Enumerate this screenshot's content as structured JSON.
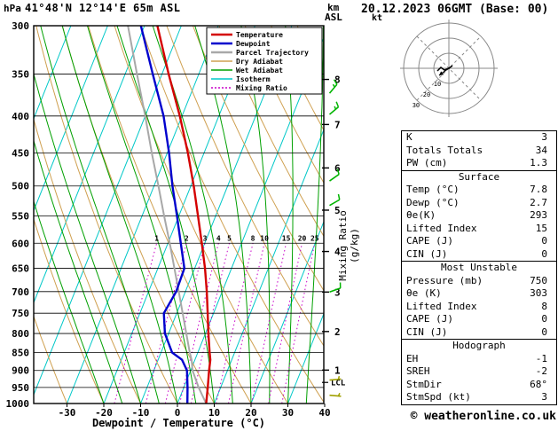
{
  "header": {
    "pressure_unit": "hPa",
    "title": "41°48'N 12°14'E 65m ASL",
    "altitude_unit_line1": "km",
    "altitude_unit_line2": "ASL",
    "date_title": "20.12.2023 06GMT (Base: 00)"
  },
  "chart_data": {
    "type": "skewt-logp-sounding",
    "xlabel": "Dewpoint / Temperature (°C)",
    "mixing_ratio_axis_label": "Mixing Ratio (g/kg)",
    "pressure_axis_range": [
      300,
      1000
    ],
    "temp_axis_range": [
      -40,
      40
    ],
    "pressure_ticks": [
      300,
      350,
      400,
      450,
      500,
      550,
      600,
      650,
      700,
      750,
      800,
      850,
      900,
      950,
      1000
    ],
    "temp_ticks": [
      -30,
      -20,
      -10,
      0,
      10,
      20,
      30,
      40
    ],
    "mixing_ratio_lines": [
      1,
      2,
      3,
      4,
      5,
      8,
      10,
      15,
      20,
      25
    ],
    "km_ticks": [
      {
        "km": 8,
        "p": 356
      },
      {
        "km": 7,
        "p": 411
      },
      {
        "km": 6,
        "p": 472
      },
      {
        "km": 5,
        "p": 540
      },
      {
        "km": 4,
        "p": 616
      },
      {
        "km": 3,
        "p": 701
      },
      {
        "km": 2,
        "p": 795
      },
      {
        "km": 1,
        "p": 899
      }
    ],
    "lcl": {
      "label": "LCL",
      "p": 935
    },
    "legend": [
      {
        "label": "Temperature",
        "key": "temperature"
      },
      {
        "label": "Dewpoint",
        "key": "dewpoint"
      },
      {
        "label": "Parcel Trajectory",
        "key": "parcel"
      },
      {
        "label": "Dry Adiabat",
        "key": "dry_adiabat"
      },
      {
        "label": "Wet Adiabat",
        "key": "wet_adiabat"
      },
      {
        "label": "Isotherm",
        "key": "isotherm"
      },
      {
        "label": "Mixing Ratio",
        "key": "mixing_ratio"
      }
    ],
    "colors": {
      "temperature": "#d40000",
      "dewpoint": "#0000cd",
      "parcel": "#a8a8a8",
      "dry_adiabat": "#cfa050",
      "wet_adiabat": "#00a000",
      "isotherm": "#00c8c8",
      "mixing_ratio": "#c800c8",
      "grid": "#000000",
      "barb_upper": "#00b400",
      "barb_lower": "#a0a000"
    },
    "sounding": {
      "pressure": [
        1000,
        950,
        900,
        870,
        850,
        800,
        750,
        700,
        650,
        600,
        550,
        500,
        450,
        400,
        350,
        300
      ],
      "temperature": [
        7.8,
        6.5,
        5.0,
        4.2,
        3.2,
        0.8,
        -1.6,
        -4.2,
        -7.2,
        -10.8,
        -14.8,
        -19.2,
        -24.4,
        -30.6,
        -38.2,
        -46.5
      ],
      "dewpoint": [
        2.7,
        1.0,
        -1.0,
        -3.5,
        -7.0,
        -11.0,
        -13.5,
        -12.5,
        -12.8,
        -16.5,
        -20.5,
        -25.0,
        -29.5,
        -35.0,
        -42.5,
        -51.0
      ],
      "parcel": [
        7.8,
        4.0,
        0.5,
        -0.9,
        -2.2,
        -5.2,
        -8.4,
        -11.8,
        -15.5,
        -19.5,
        -24.0,
        -28.8,
        -34.2,
        -40.0,
        -46.8,
        -54.5
      ]
    },
    "wind_barbs": [
      {
        "p": 372,
        "dir": 40,
        "spd": 15,
        "tier": "upper"
      },
      {
        "p": 398,
        "dir": 50,
        "spd": 15,
        "tier": "upper"
      },
      {
        "p": 492,
        "dir": 55,
        "spd": 10,
        "tier": "upper"
      },
      {
        "p": 532,
        "dir": 60,
        "spd": 10,
        "tier": "upper"
      },
      {
        "p": 701,
        "dir": 70,
        "spd": 10,
        "tier": "upper"
      },
      {
        "p": 928,
        "dir": 85,
        "spd": 5,
        "tier": "lower"
      },
      {
        "p": 974,
        "dir": 95,
        "spd": 5,
        "tier": "lower"
      }
    ]
  },
  "hodograph": {
    "unit_label": "kt",
    "rings_kt": [
      10,
      20,
      30
    ],
    "ring_labels": [
      "10",
      "20",
      "30"
    ],
    "trace": [
      [
        4,
        -3
      ],
      [
        0,
        0
      ],
      [
        -5,
        2
      ],
      [
        -9,
        -1
      ],
      [
        -13,
        3
      ]
    ],
    "storm_arrow": [
      [
        1,
        -1
      ],
      [
        -11,
        8
      ]
    ]
  },
  "table": {
    "sections": [
      {
        "header": "",
        "rows": [
          [
            "K",
            "3"
          ],
          [
            "Totals Totals",
            "34"
          ],
          [
            "PW (cm)",
            "1.3"
          ]
        ]
      },
      {
        "header": "Surface",
        "rows": [
          [
            "Temp (°C)",
            "7.8"
          ],
          [
            "Dewp (°C)",
            "2.7"
          ],
          [
            "θe(K)",
            "293"
          ],
          [
            "Lifted Index",
            "15"
          ],
          [
            "CAPE (J)",
            "0"
          ],
          [
            "CIN (J)",
            "0"
          ]
        ]
      },
      {
        "header": "Most Unstable",
        "rows": [
          [
            "Pressure (mb)",
            "750"
          ],
          [
            "θe (K)",
            "303"
          ],
          [
            "Lifted Index",
            "8"
          ],
          [
            "CAPE (J)",
            "0"
          ],
          [
            "CIN (J)",
            "0"
          ]
        ]
      },
      {
        "header": "Hodograph",
        "rows": [
          [
            "EH",
            "-1"
          ],
          [
            "SREH",
            "-2"
          ],
          [
            "StmDir",
            "68°"
          ],
          [
            "StmSpd (kt)",
            "3"
          ]
        ]
      }
    ]
  },
  "footer": {
    "copyright": "© weatheronline.co.uk"
  }
}
